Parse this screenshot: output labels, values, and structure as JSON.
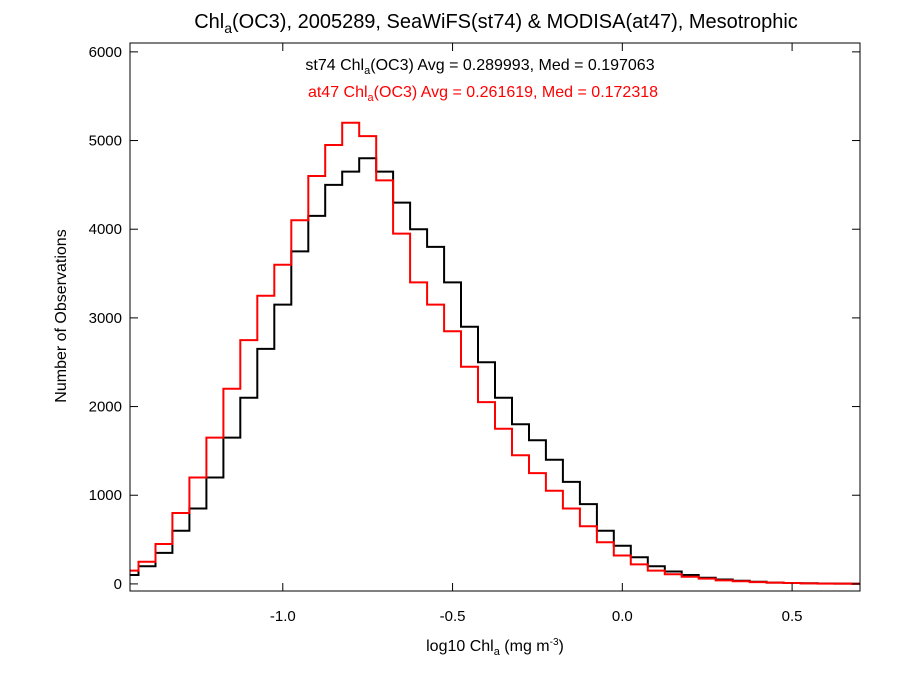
{
  "chart_data": {
    "type": "histogram",
    "title": {
      "pre": "Chl",
      "sub": "a",
      "post": "(OC3), 2005289, SeaWiFS(st74) & MODISA(at47), Mesotrophic"
    },
    "xlabel": {
      "pre": "log10 Chl",
      "sub": "a",
      "mid": " (mg m",
      "sup": "-3",
      "post": ")"
    },
    "ylabel": "Number of Observations",
    "xlim": [
      -1.45,
      0.7
    ],
    "ylim": [
      -80,
      6100
    ],
    "x_ticks": [
      -1.0,
      -0.5,
      0.0,
      0.5
    ],
    "x_tick_labels": [
      "-1.0",
      "-0.5",
      "0.0",
      "0.5"
    ],
    "y_ticks": [
      0,
      1000,
      2000,
      3000,
      4000,
      5000,
      6000
    ],
    "y_tick_labels": [
      "0",
      "1000",
      "2000",
      "3000",
      "4000",
      "5000",
      "6000"
    ],
    "grid": false,
    "annotations": [
      {
        "color": "#000000",
        "pre": "st74 Chl",
        "sub": "a",
        "post": "(OC3) Avg = 0.289993, Med = 0.197063"
      },
      {
        "color": "#ff0000",
        "pre": "at47 Chl",
        "sub": "a",
        "post": "(OC3) Avg = 0.261619, Med = 0.172318"
      }
    ],
    "series": [
      {
        "name": "st74",
        "color": "#000000",
        "x": [
          -1.45,
          -1.4,
          -1.35,
          -1.3,
          -1.25,
          -1.2,
          -1.15,
          -1.1,
          -1.05,
          -1.0,
          -0.95,
          -0.9,
          -0.85,
          -0.8,
          -0.75,
          -0.7,
          -0.65,
          -0.6,
          -0.55,
          -0.5,
          -0.45,
          -0.4,
          -0.35,
          -0.3,
          -0.25,
          -0.2,
          -0.15,
          -0.1,
          -0.05,
          0.0,
          0.05,
          0.1,
          0.15,
          0.2,
          0.25,
          0.3,
          0.35,
          0.4,
          0.45,
          0.5,
          0.55,
          0.6,
          0.65,
          0.7
        ],
        "y": [
          100,
          200,
          350,
          600,
          850,
          1200,
          1650,
          2100,
          2650,
          3150,
          3750,
          4150,
          4500,
          4650,
          4800,
          4650,
          4300,
          4000,
          3800,
          3400,
          2900,
          2500,
          2100,
          1800,
          1620,
          1400,
          1150,
          900,
          600,
          430,
          300,
          200,
          140,
          100,
          70,
          50,
          35,
          25,
          15,
          10,
          8,
          5,
          3,
          2
        ]
      },
      {
        "name": "at47",
        "color": "#ff0000",
        "x": [
          -1.45,
          -1.4,
          -1.35,
          -1.3,
          -1.25,
          -1.2,
          -1.15,
          -1.1,
          -1.05,
          -1.0,
          -0.95,
          -0.9,
          -0.85,
          -0.8,
          -0.75,
          -0.7,
          -0.65,
          -0.6,
          -0.55,
          -0.5,
          -0.45,
          -0.4,
          -0.35,
          -0.3,
          -0.25,
          -0.2,
          -0.15,
          -0.1,
          -0.05,
          0.0,
          0.05,
          0.1,
          0.15,
          0.2,
          0.25,
          0.3,
          0.35,
          0.4,
          0.45,
          0.5,
          0.55,
          0.6,
          0.65,
          0.7
        ],
        "y": [
          150,
          250,
          450,
          800,
          1200,
          1650,
          2200,
          2750,
          3250,
          3600,
          4100,
          4600,
          4950,
          5200,
          5050,
          4550,
          3950,
          3400,
          3150,
          2850,
          2450,
          2050,
          1750,
          1450,
          1250,
          1050,
          850,
          650,
          470,
          320,
          220,
          150,
          110,
          80,
          60,
          40,
          30,
          20,
          15,
          10,
          6,
          4,
          3,
          2
        ]
      }
    ]
  }
}
